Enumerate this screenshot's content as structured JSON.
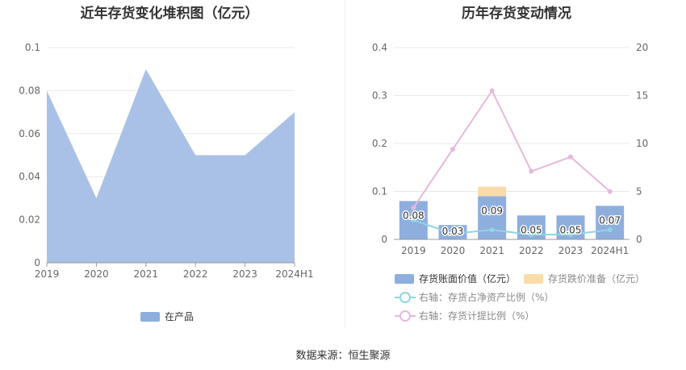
{
  "titles": {
    "left": "近年存货变化堆积图（亿元）",
    "right": "历年存货变动情况"
  },
  "source": "数据来源：恒生聚源",
  "colors": {
    "bar_book": "#8eaede",
    "bar_reserve": "#fbdba9",
    "line_net": "#8ed6e0",
    "line_provision": "#e7b8dc",
    "area": "#a9c1e6",
    "grid": "#e8e8e8",
    "axis": "#999999"
  },
  "chart_data": [
    {
      "type": "area",
      "title": "近年存货变化堆积图（亿元）",
      "categories": [
        "2019",
        "2020",
        "2021",
        "2022",
        "2023",
        "2024H1"
      ],
      "ylim": [
        0,
        0.1
      ],
      "yticks": [
        "0",
        "0.02",
        "0.04",
        "0.06",
        "0.08",
        "0.1"
      ],
      "grid": true,
      "legend_position": "bottom-center",
      "series": [
        {
          "name": "在产品",
          "values": [
            0.08,
            0.03,
            0.09,
            0.05,
            0.05,
            0.07
          ]
        }
      ]
    },
    {
      "type": "bar",
      "title": "历年存货变动情况",
      "categories": [
        "2019",
        "2020",
        "2021",
        "2022",
        "2023",
        "2024H1"
      ],
      "ylim_left": [
        0,
        0.4
      ],
      "yticks_left": [
        "0",
        "0.1",
        "0.2",
        "0.3",
        "0.4"
      ],
      "ylim_right": [
        0,
        20
      ],
      "yticks_right": [
        "0",
        "5",
        "10",
        "15",
        "20"
      ],
      "grid": true,
      "legend_position": "bottom",
      "series": [
        {
          "name": "存货账面价值（亿元）",
          "type": "bar",
          "axis": "left",
          "values": [
            0.08,
            0.03,
            0.09,
            0.05,
            0.05,
            0.07
          ],
          "labels": [
            "0.08",
            "0.03",
            "0.09",
            "0.05",
            "0.05",
            "0.07"
          ]
        },
        {
          "name": "存货跌价准备（亿元）",
          "type": "bar",
          "axis": "left",
          "stacked": true,
          "values": [
            0,
            0,
            0.02,
            0,
            0,
            0
          ]
        },
        {
          "name": "右轴：存货占净资产比例（%）",
          "type": "line",
          "axis": "right",
          "values": [
            2.0,
            0.6,
            1.0,
            0.5,
            0.5,
            1.0
          ]
        },
        {
          "name": "右轴：存货计提比例（%）",
          "type": "line",
          "axis": "right",
          "values": [
            3.3,
            9.4,
            15.5,
            7.1,
            8.6,
            5.0
          ]
        }
      ]
    }
  ]
}
